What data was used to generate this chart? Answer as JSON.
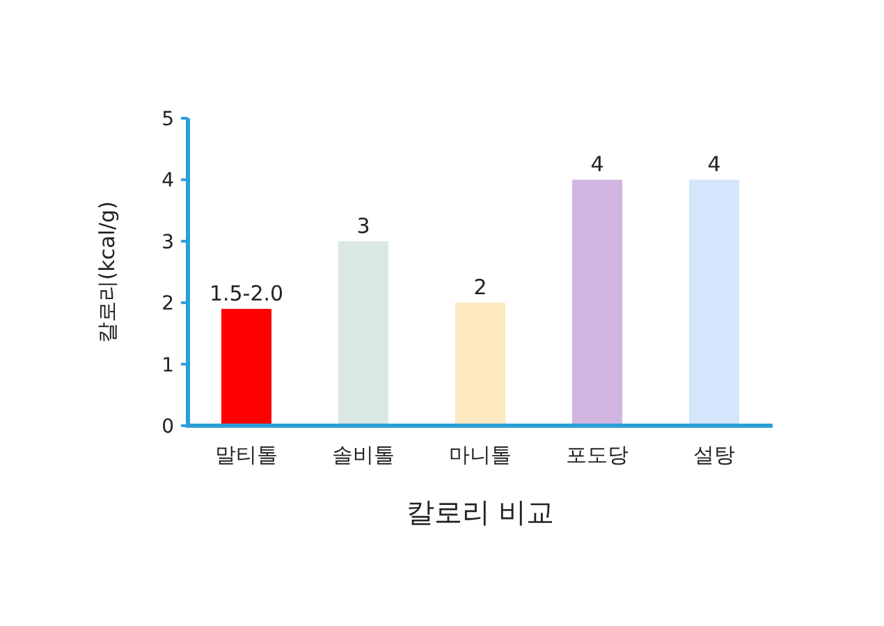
{
  "chart_data": {
    "type": "bar",
    "categories": [
      "말티톨",
      "솔비톨",
      "마니톨",
      "포도당",
      "설탕"
    ],
    "values": [
      1.9,
      3,
      2,
      4,
      4
    ],
    "value_labels": [
      "1.5-2.0",
      "3",
      "2",
      "4",
      "4"
    ],
    "colors": [
      "#ff0000",
      "#d9e8e2",
      "#fde8c0",
      "#cfb5df",
      "#d5e5fb"
    ],
    "xlabel": "칼로리 비교",
    "ylabel": "칼로리(kcal/g)",
    "ylim": [
      0,
      5
    ],
    "yticks": [
      0,
      1,
      2,
      3,
      4,
      5
    ],
    "grid": false
  }
}
